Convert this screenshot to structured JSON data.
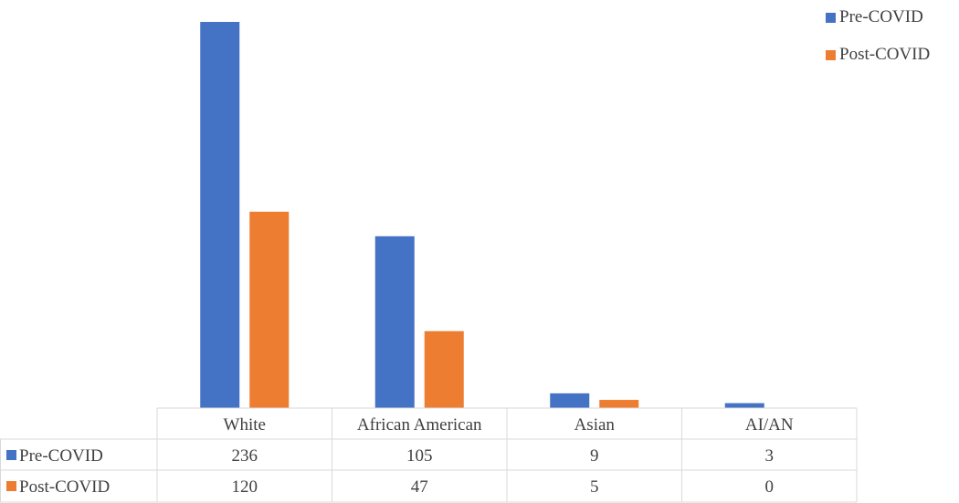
{
  "chart_data": {
    "type": "bar",
    "categories": [
      "White",
      "African American",
      "Asian",
      "AI/AN"
    ],
    "series": [
      {
        "name": "Pre-COVID",
        "values": [
          236,
          105,
          9,
          3
        ],
        "color": "#4472C4"
      },
      {
        "name": "Post-COVID",
        "values": [
          120,
          47,
          5,
          0
        ],
        "color": "#ED7D31"
      }
    ],
    "ylim": [
      0,
      236
    ],
    "legend": "top-right",
    "grid": false,
    "data_table": true
  }
}
